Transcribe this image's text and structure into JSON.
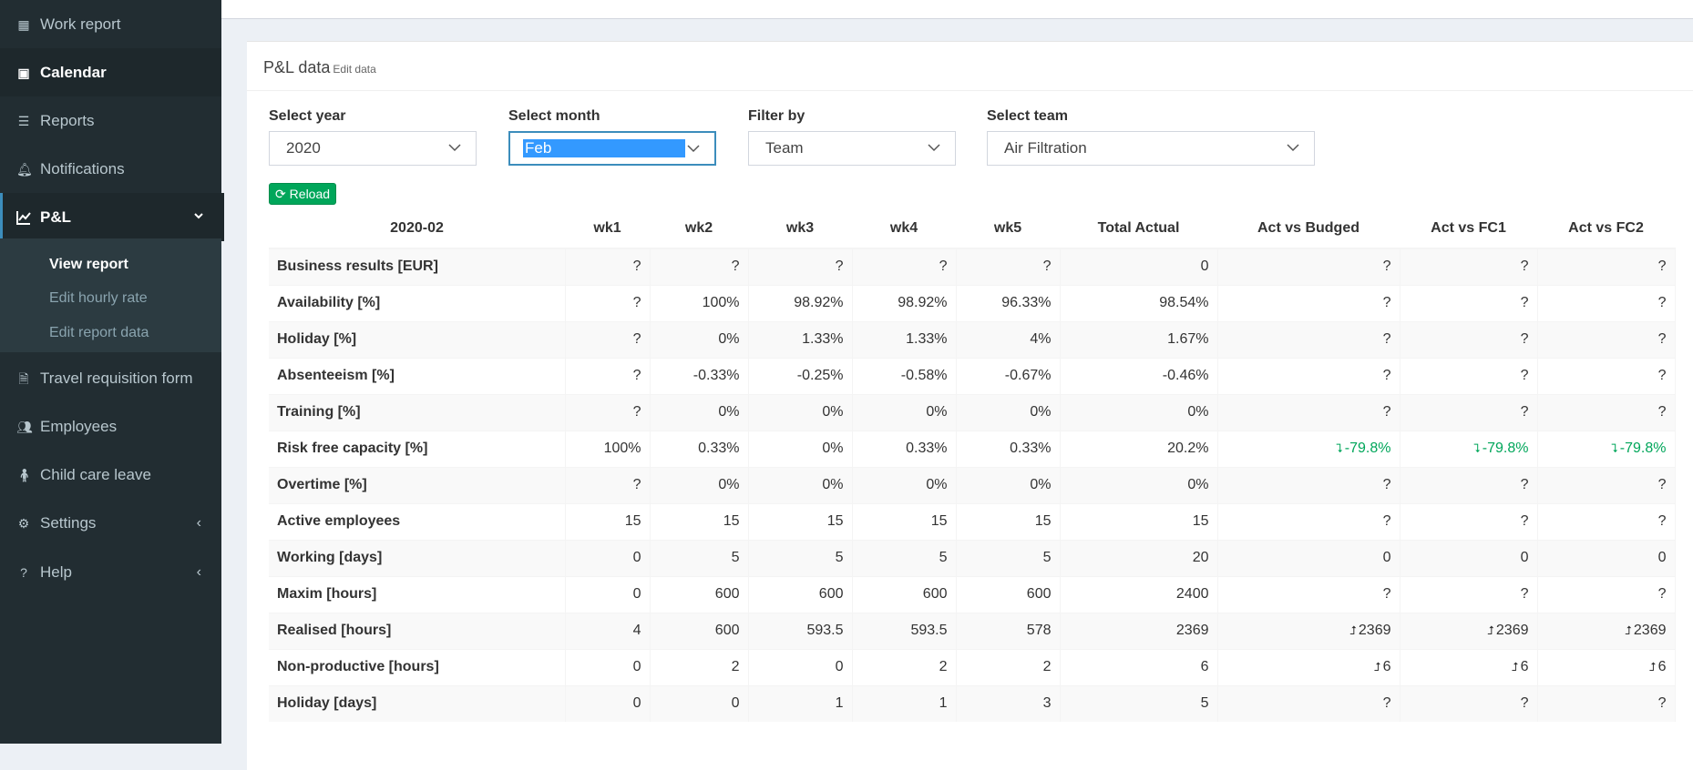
{
  "sidebar": {
    "items": [
      {
        "label": "Work report",
        "icon": "table-icon"
      },
      {
        "label": "Calendar",
        "icon": "calendar-icon"
      },
      {
        "label": "Reports",
        "icon": "list-icon"
      },
      {
        "label": "Notifications",
        "icon": "bell-icon"
      },
      {
        "label": "P&L",
        "icon": "line-chart-icon"
      },
      {
        "label": "Travel requisition form",
        "icon": "file-icon"
      },
      {
        "label": "Employees",
        "icon": "users-icon"
      },
      {
        "label": "Child care leave",
        "icon": "child-icon"
      },
      {
        "label": "Settings",
        "icon": "gear-icon"
      },
      {
        "label": "Help",
        "icon": "help-icon"
      }
    ],
    "submenu": [
      "View report",
      "Edit hourly rate",
      "Edit report data"
    ]
  },
  "box": {
    "title": "P&L data",
    "subtitle": "Edit data"
  },
  "filters": {
    "year_label": "Select year",
    "year_value": "2020",
    "month_label": "Select month",
    "month_value": "Feb",
    "filter_label": "Filter by",
    "filter_value": "Team",
    "team_label": "Select team",
    "team_value": "Air Filtration"
  },
  "reload_label": "Reload",
  "table": {
    "headers": [
      "2020-02",
      "wk1",
      "wk2",
      "wk3",
      "wk4",
      "wk5",
      "Total Actual",
      "Act vs Budged",
      "Act vs FC1",
      "Act vs FC2"
    ],
    "rows": [
      [
        "Business results [EUR]",
        "?",
        "?",
        "?",
        "?",
        "?",
        "0",
        "?",
        "?",
        "?"
      ],
      [
        "Availability [%]",
        "?",
        "100%",
        "98.92%",
        "98.92%",
        "96.33%",
        "98.54%",
        "?",
        "?",
        "?"
      ],
      [
        "Holiday [%]",
        "?",
        "0%",
        "1.33%",
        "1.33%",
        "4%",
        "1.67%",
        "?",
        "?",
        "?"
      ],
      [
        "Absenteeism [%]",
        "?",
        "-0.33%",
        "-0.25%",
        "-0.58%",
        "-0.67%",
        "-0.46%",
        "?",
        "?",
        "?"
      ],
      [
        "Training [%]",
        "?",
        "0%",
        "0%",
        "0%",
        "0%",
        "0%",
        "?",
        "?",
        "?"
      ],
      [
        "Risk free capacity [%]",
        "100%",
        "0.33%",
        "0%",
        "0.33%",
        "0.33%",
        "20.2%",
        "-79.8%",
        "-79.8%",
        "-79.8%"
      ],
      [
        "Overtime [%]",
        "?",
        "0%",
        "0%",
        "0%",
        "0%",
        "0%",
        "?",
        "?",
        "?"
      ],
      [
        "Active employees",
        "15",
        "15",
        "15",
        "15",
        "15",
        "15",
        "?",
        "?",
        "?"
      ],
      [
        "Working [days]",
        "0",
        "5",
        "5",
        "5",
        "5",
        "20",
        "0",
        "0",
        "0"
      ],
      [
        "Maxim [hours]",
        "0",
        "600",
        "600",
        "600",
        "600",
        "2400",
        "?",
        "?",
        "?"
      ],
      [
        "Realised [hours]",
        "4",
        "600",
        "593.5",
        "593.5",
        "578",
        "2369",
        "2369",
        "2369",
        "2369"
      ],
      [
        "Non-productive [hours]",
        "0",
        "2",
        "0",
        "2",
        "2",
        "6",
        "6",
        "6",
        "6"
      ],
      [
        "Holiday [days]",
        "0",
        "0",
        "1",
        "1",
        "3",
        "5",
        "?",
        "?",
        "?"
      ]
    ],
    "indicators": {
      "5": {
        "type": "down",
        "color": "#00a65a"
      },
      "10": {
        "type": "up",
        "color": "#333333"
      },
      "11": {
        "type": "up",
        "color": "#333333"
      }
    }
  },
  "colors": {
    "sidebar_bg": "#222d32",
    "accent": "#3c8dbc",
    "reload_bg": "#00a65a"
  }
}
